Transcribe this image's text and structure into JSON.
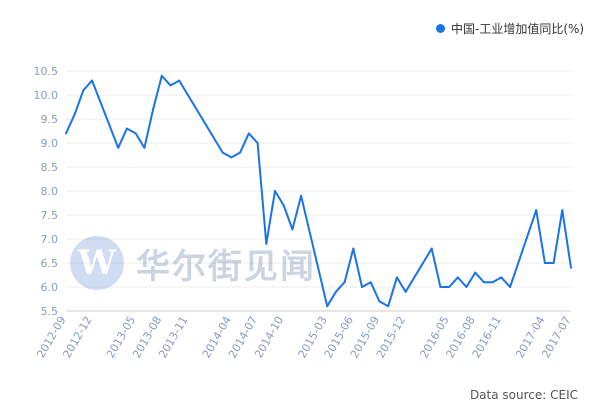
{
  "legend": {
    "label": "中国-工业增加值同比(%)"
  },
  "source": "Data source: CEIC",
  "watermark": {
    "mark": "W",
    "text": "华尔街见闻"
  },
  "colors": {
    "series": "#1a73e8",
    "axis_text": "#8a9bbd",
    "grid": "#eeeeee"
  },
  "chart_data": {
    "type": "line",
    "title": "",
    "xlabel": "",
    "ylabel": "",
    "ylim": [
      5.5,
      10.5
    ],
    "yticks": [
      5.5,
      6.0,
      6.5,
      7.0,
      7.5,
      8.0,
      8.5,
      9.0,
      9.5,
      10.0,
      10.5
    ],
    "xticks": [
      "2012-09",
      "2012-12",
      "2013-05",
      "2013-08",
      "2013-11",
      "2014-04",
      "2014-07",
      "2014-10",
      "2015-03",
      "2015-06",
      "2015-09",
      "2015-12",
      "2016-05",
      "2016-08",
      "2016-11",
      "2017-04",
      "2017-07"
    ],
    "grid": true,
    "legend_position": "top-right",
    "series": [
      {
        "name": "中国-工业增加值同比(%)",
        "x": [
          "2012-09",
          "2012-10",
          "2012-11",
          "2012-12",
          "2013-03",
          "2013-04",
          "2013-05",
          "2013-06",
          "2013-07",
          "2013-08",
          "2013-09",
          "2013-10",
          "2013-11",
          "2013-12",
          "2014-03",
          "2014-04",
          "2014-05",
          "2014-06",
          "2014-07",
          "2014-08",
          "2014-09",
          "2014-10",
          "2014-11",
          "2014-12",
          "2015-03",
          "2015-04",
          "2015-05",
          "2015-06",
          "2015-07",
          "2015-08",
          "2015-09",
          "2015-10",
          "2015-11",
          "2015-12",
          "2016-03",
          "2016-04",
          "2016-05",
          "2016-06",
          "2016-07",
          "2016-08",
          "2016-09",
          "2016-10",
          "2016-11",
          "2016-12",
          "2017-03",
          "2017-04",
          "2017-05",
          "2017-06",
          "2017-07"
        ],
        "values": [
          9.2,
          9.6,
          10.1,
          10.3,
          8.9,
          9.3,
          9.2,
          8.9,
          9.7,
          10.4,
          10.2,
          10.3,
          10.0,
          9.7,
          8.8,
          8.7,
          8.8,
          9.2,
          9.0,
          6.9,
          8.0,
          7.7,
          7.2,
          7.9,
          5.6,
          5.9,
          6.1,
          6.8,
          6.0,
          6.1,
          5.7,
          5.6,
          6.2,
          5.9,
          6.8,
          6.0,
          6.0,
          6.2,
          6.0,
          6.3,
          6.1,
          6.1,
          6.2,
          6.0,
          7.6,
          6.5,
          6.5,
          7.6,
          6.4
        ]
      }
    ]
  }
}
